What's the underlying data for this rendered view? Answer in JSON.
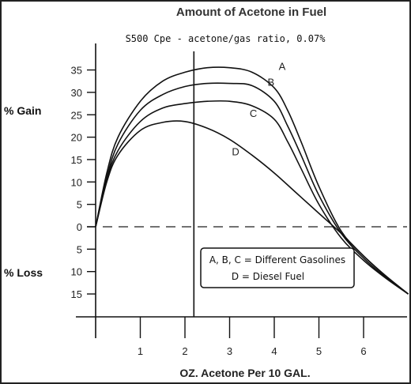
{
  "chart_data": {
    "type": "line",
    "title": "Amount of Acetone in Fuel",
    "subtitle": "S500 Cpe - acetone/gas ratio, 0.07%",
    "xlabel": "OZ. Acetone Per 10 GAL.",
    "gain_label": "% Gain",
    "loss_label": "% Loss",
    "x_ticks": [
      1,
      2,
      3,
      4,
      5,
      6
    ],
    "x_tick_labels": [
      "1",
      "2",
      "3",
      "4",
      "5",
      "6"
    ],
    "y_ticks": [
      35,
      30,
      25,
      20,
      15,
      10,
      5,
      0,
      -5,
      -10,
      -15
    ],
    "y_tick_labels": [
      "35",
      "30",
      "25",
      "20",
      "15",
      "10",
      "5",
      "0",
      "5",
      "10",
      "15"
    ],
    "xlim": [
      0,
      7
    ],
    "ylim": [
      -20,
      40
    ],
    "reference_vline_x": 2.2,
    "zero_line_dashed": true,
    "series": [
      {
        "name": "A",
        "x": [
          0,
          0.25,
          0.5,
          1,
          1.5,
          2,
          2.5,
          3,
          3.5,
          4,
          4.3,
          4.6,
          5,
          5.5,
          6,
          6.5,
          7
        ],
        "y": [
          0,
          12,
          20,
          28,
          32.5,
          34.5,
          35.5,
          35.5,
          34.5,
          31,
          26,
          19,
          9,
          -1,
          -6.5,
          -11,
          -15
        ]
      },
      {
        "name": "B",
        "x": [
          0,
          0.25,
          0.5,
          1,
          1.5,
          2,
          2.5,
          3,
          3.5,
          4,
          4.3,
          4.6,
          5,
          5.5,
          6,
          6.5,
          7
        ],
        "y": [
          0,
          11,
          18.5,
          26,
          29.5,
          31.3,
          32,
          32,
          31.5,
          28,
          22.5,
          16,
          7,
          -1.5,
          -7,
          -11.3,
          -15
        ]
      },
      {
        "name": "C",
        "x": [
          0,
          0.25,
          0.5,
          1,
          1.5,
          2,
          2.5,
          3,
          3.5,
          4,
          4.3,
          4.6,
          5,
          5.5,
          6,
          6.5,
          7
        ],
        "y": [
          0,
          10.5,
          17,
          23.5,
          26.5,
          27.5,
          28,
          28,
          27,
          24,
          19,
          13,
          5,
          -2.5,
          -7.5,
          -11.5,
          -15
        ]
      },
      {
        "name": "D",
        "x": [
          0,
          0.25,
          0.5,
          1,
          1.5,
          2,
          2.5,
          3,
          3.5,
          4,
          4.5,
          5,
          5.5,
          6,
          6.5,
          7
        ],
        "y": [
          0,
          10,
          16,
          21.5,
          23.3,
          23.5,
          22,
          19.5,
          16,
          12,
          7.5,
          3,
          -1.5,
          -6.5,
          -11,
          -15
        ]
      }
    ],
    "curve_label_x": [
      4.1,
      3.85,
      3.45,
      3.05
    ],
    "curve_label_y": [
      35,
      31.5,
      24.5,
      16
    ],
    "legend": {
      "placement": "bottom-right",
      "line1": "A, B, C = Different Gasolines",
      "line2": "D = Diesel Fuel"
    }
  }
}
